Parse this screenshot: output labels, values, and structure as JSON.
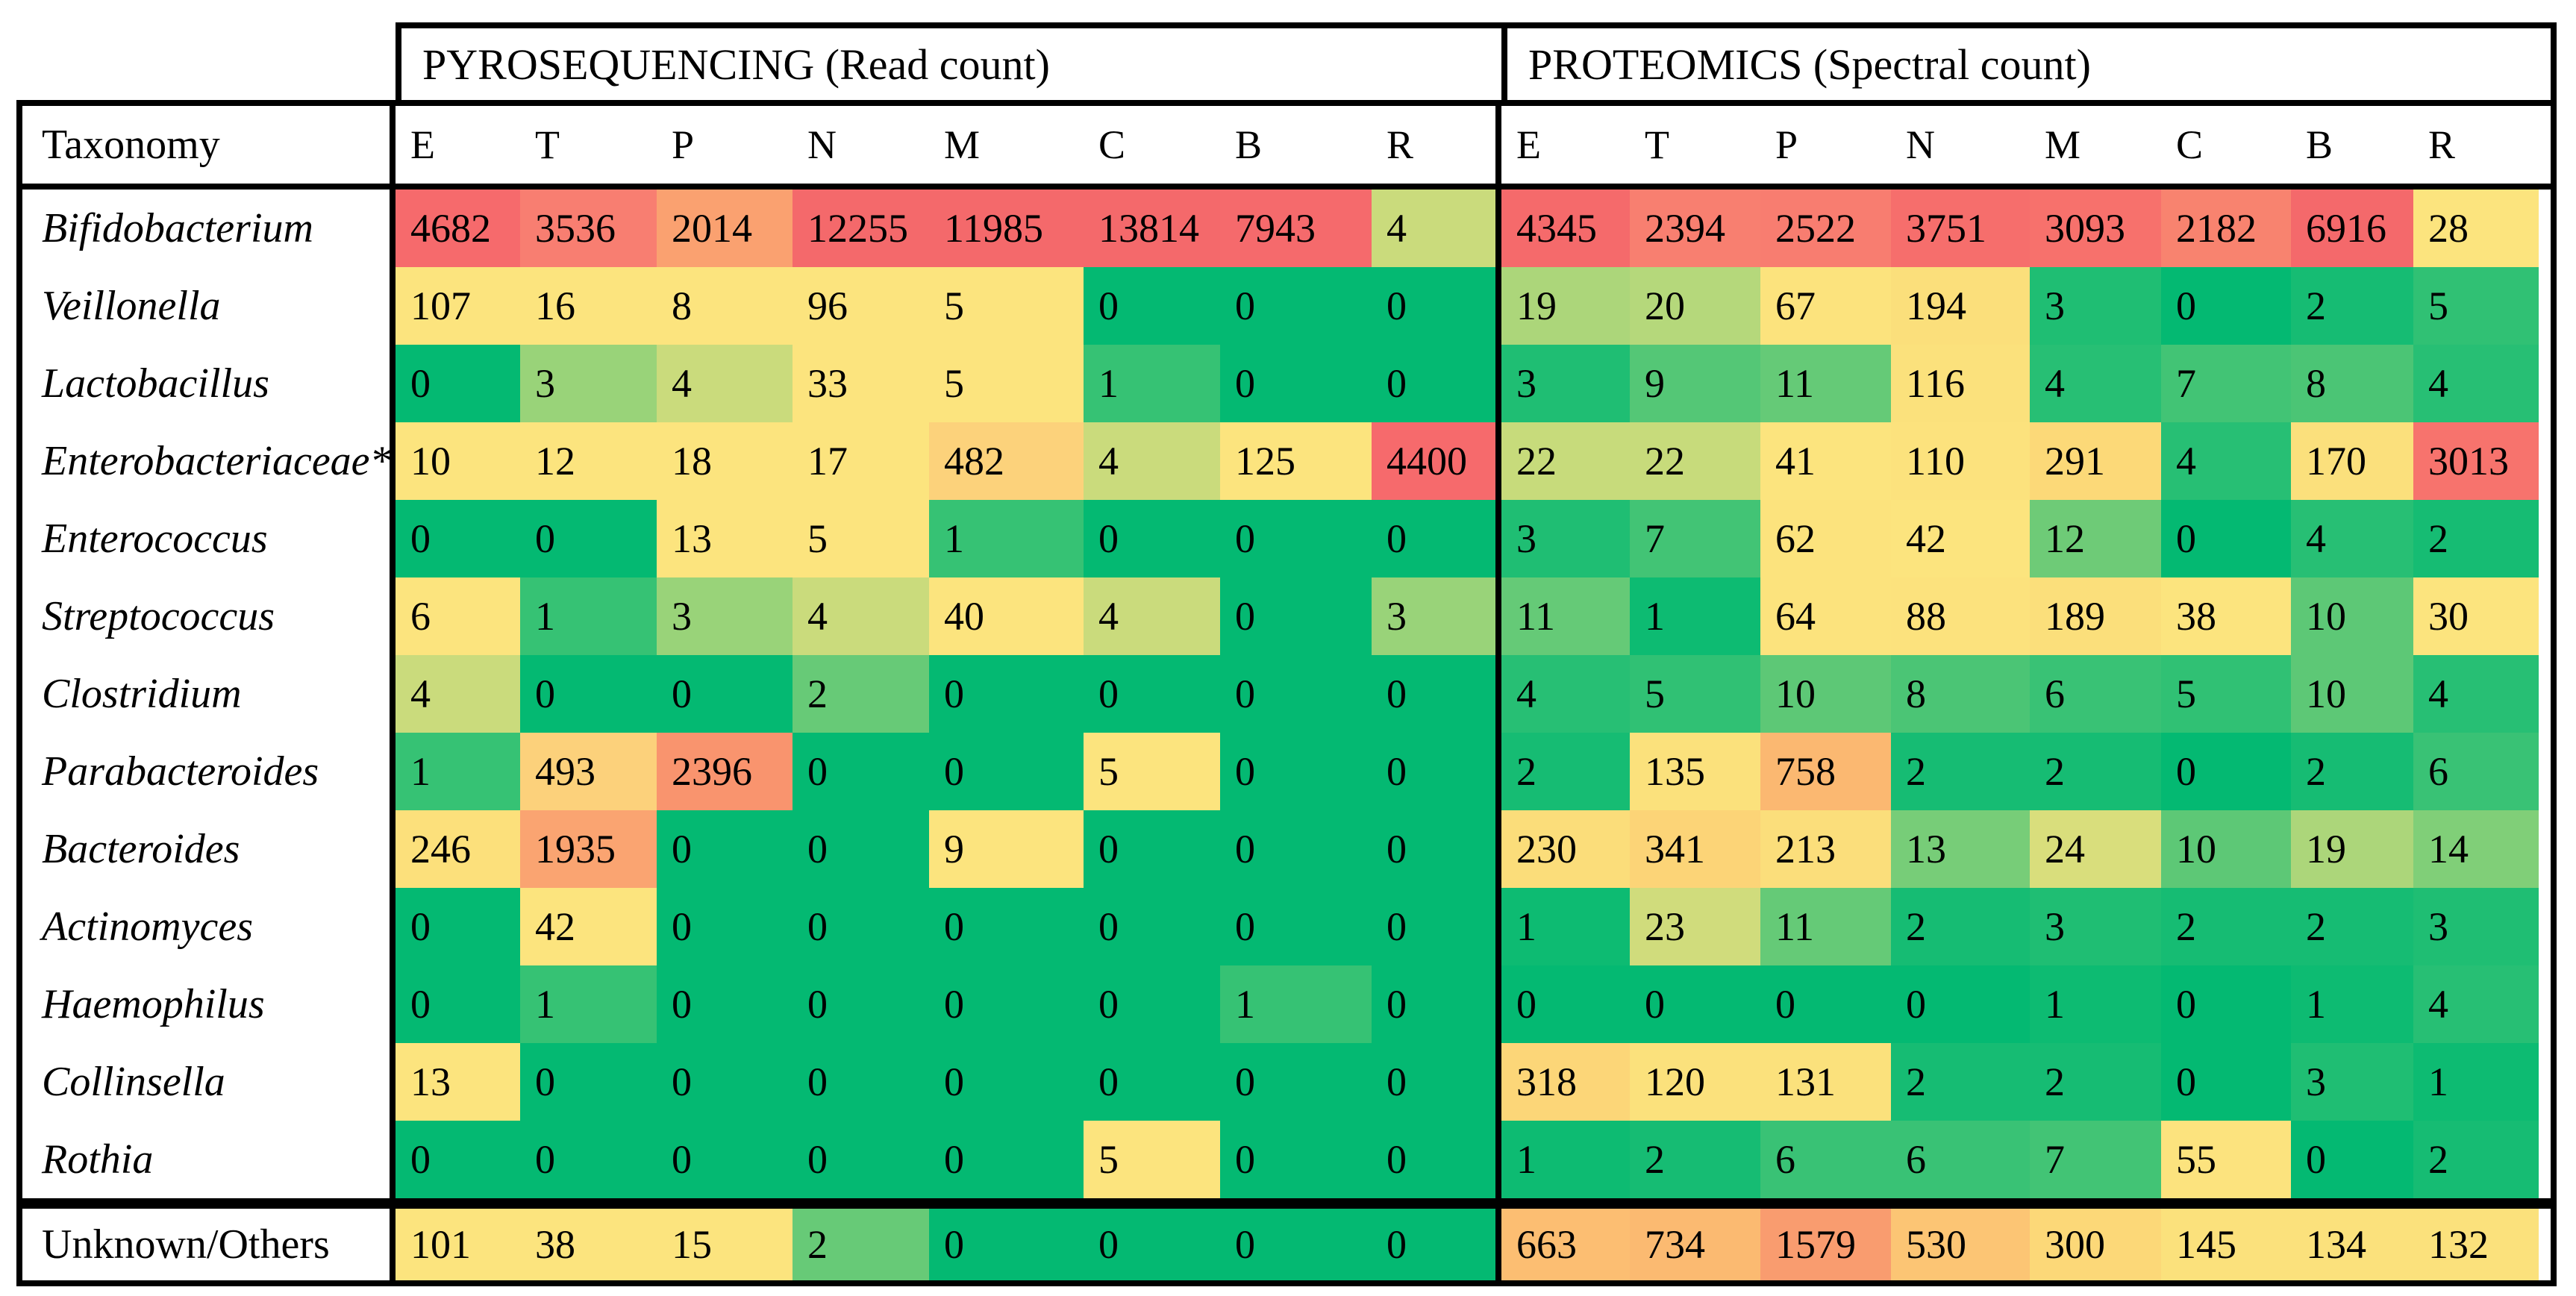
{
  "chart_data": {
    "type": "heatmap",
    "row_header": "Taxonomy",
    "groups": [
      {
        "title": "PYROSEQUENCING (Read count)",
        "key": "pyrosequencing"
      },
      {
        "title": "PROTEOMICS (Spectral count)",
        "key": "proteomics"
      }
    ],
    "columns": [
      "E",
      "T",
      "P",
      "N",
      "M",
      "C",
      "B",
      "R"
    ],
    "rows": [
      {
        "taxon": "Bifidobacterium",
        "italic": true,
        "pyrosequencing": [
          4682,
          3536,
          2014,
          12255,
          11985,
          13814,
          7943,
          4
        ],
        "proteomics": [
          4345,
          2394,
          2522,
          3751,
          3093,
          2182,
          6916,
          28
        ]
      },
      {
        "taxon": "Veillonella",
        "italic": true,
        "pyrosequencing": [
          107,
          16,
          8,
          96,
          5,
          0,
          0,
          0
        ],
        "proteomics": [
          19,
          20,
          67,
          194,
          3,
          0,
          2,
          5
        ]
      },
      {
        "taxon": "Lactobacillus",
        "italic": true,
        "pyrosequencing": [
          0,
          3,
          4,
          33,
          5,
          1,
          0,
          0
        ],
        "proteomics": [
          3,
          9,
          11,
          116,
          4,
          7,
          8,
          4
        ]
      },
      {
        "taxon": "Enterobacteriaceae*",
        "italic": true,
        "pyrosequencing": [
          10,
          12,
          18,
          17,
          482,
          4,
          125,
          4400
        ],
        "proteomics": [
          22,
          22,
          41,
          110,
          291,
          4,
          170,
          3013
        ]
      },
      {
        "taxon": "Enterococcus",
        "italic": true,
        "pyrosequencing": [
          0,
          0,
          13,
          5,
          1,
          0,
          0,
          0
        ],
        "proteomics": [
          3,
          7,
          62,
          42,
          12,
          0,
          4,
          2
        ]
      },
      {
        "taxon": "Streptococcus",
        "italic": true,
        "pyrosequencing": [
          6,
          1,
          3,
          4,
          40,
          4,
          0,
          3
        ],
        "proteomics": [
          11,
          1,
          64,
          88,
          189,
          38,
          10,
          30
        ]
      },
      {
        "taxon": "Clostridium",
        "italic": true,
        "pyrosequencing": [
          4,
          0,
          0,
          2,
          0,
          0,
          0,
          0
        ],
        "proteomics": [
          4,
          5,
          10,
          8,
          6,
          5,
          10,
          4
        ]
      },
      {
        "taxon": "Parabacteroides",
        "italic": true,
        "pyrosequencing": [
          1,
          493,
          2396,
          0,
          0,
          5,
          0,
          0
        ],
        "proteomics": [
          2,
          135,
          758,
          2,
          2,
          0,
          2,
          6
        ]
      },
      {
        "taxon": "Bacteroides",
        "italic": true,
        "pyrosequencing": [
          246,
          1935,
          0,
          0,
          9,
          0,
          0,
          0
        ],
        "proteomics": [
          230,
          341,
          213,
          13,
          24,
          10,
          19,
          14
        ]
      },
      {
        "taxon": "Actinomyces",
        "italic": true,
        "pyrosequencing": [
          0,
          42,
          0,
          0,
          0,
          0,
          0,
          0
        ],
        "proteomics": [
          1,
          23,
          11,
          2,
          3,
          2,
          2,
          3
        ]
      },
      {
        "taxon": "Haemophilus",
        "italic": true,
        "pyrosequencing": [
          0,
          1,
          0,
          0,
          0,
          0,
          1,
          0
        ],
        "proteomics": [
          0,
          0,
          0,
          0,
          1,
          0,
          1,
          4
        ]
      },
      {
        "taxon": "Collinsella",
        "italic": true,
        "pyrosequencing": [
          13,
          0,
          0,
          0,
          0,
          0,
          0,
          0
        ],
        "proteomics": [
          318,
          120,
          131,
          2,
          2,
          0,
          3,
          1
        ]
      },
      {
        "taxon": "Rothia",
        "italic": true,
        "pyrosequencing": [
          0,
          0,
          0,
          0,
          0,
          5,
          0,
          0
        ],
        "proteomics": [
          1,
          2,
          6,
          6,
          7,
          55,
          0,
          2
        ]
      }
    ],
    "footer_row": {
      "taxon": "Unknown/Others",
      "italic": false,
      "pyrosequencing": [
        101,
        38,
        15,
        2,
        0,
        0,
        0,
        0
      ],
      "proteomics": [
        663,
        734,
        1579,
        530,
        300,
        145,
        134,
        132
      ]
    },
    "color_scale": {
      "low_color": "#04B972",
      "mid_color": "#FCE47E",
      "high_color": "#F4696B",
      "pyrosequencing": {
        "midpoint_value": 5,
        "upper_anchors": [
          [
            5,
            "#FCE47E"
          ],
          [
            130,
            "#FCE47E"
          ],
          [
            250,
            "#FCE07B"
          ],
          [
            490,
            "#FCD17B"
          ],
          [
            1935,
            "#FAA471"
          ],
          [
            2396,
            "#F9946E"
          ],
          [
            3536,
            "#F87E71"
          ],
          [
            4400,
            "#F66A6C"
          ],
          [
            13814,
            "#F4696B"
          ]
        ]
      },
      "proteomics": {
        "midpoint_value": 28,
        "upper_anchors": [
          [
            28,
            "#FCE47E"
          ],
          [
            200,
            "#FBDF7B"
          ],
          [
            300,
            "#FCD878"
          ],
          [
            341,
            "#FCD477"
          ],
          [
            530,
            "#FCC574"
          ],
          [
            663,
            "#FCBE72"
          ],
          [
            758,
            "#FBB871"
          ],
          [
            1579,
            "#F99C6F"
          ],
          [
            2182,
            "#F8836F"
          ],
          [
            2522,
            "#F87D70"
          ],
          [
            3093,
            "#F7716C"
          ],
          [
            3751,
            "#F66E6C"
          ],
          [
            4345,
            "#F56A6B"
          ],
          [
            6916,
            "#F4696B"
          ]
        ]
      }
    }
  }
}
